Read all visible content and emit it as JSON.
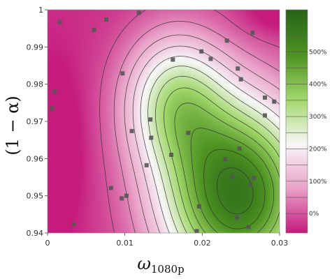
{
  "chart_data": {
    "type": "contour",
    "title": "",
    "xlabel_main": "ω",
    "xlabel_sub": "1080p",
    "ylabel": "(1 − α)",
    "x_range": [
      0,
      0.03
    ],
    "y_range": [
      0.94,
      1.0
    ],
    "x_ticks": [
      0,
      0.01,
      0.02,
      0.03
    ],
    "x_tick_labels": [
      "0",
      "0.01",
      "0.02",
      "0.03"
    ],
    "y_ticks": [
      0.94,
      0.95,
      0.96,
      0.97,
      0.98,
      0.99,
      1.0
    ],
    "y_tick_labels": [
      "0.94",
      "0.95",
      "0.96",
      "0.97",
      "0.98",
      "0.99",
      "1"
    ],
    "colorscale": "PiYG",
    "colorscale_stops": [
      "#c51b7d",
      "#e9a3c9",
      "#f7f7f7",
      "#a1d76a",
      "#4d9221",
      "#276419"
    ],
    "colorbar_range": [
      -60,
      630
    ],
    "colorbar_ticks": [
      0,
      100,
      200,
      300,
      400,
      500
    ],
    "colorbar_tick_labels": [
      "0%",
      "100%",
      "200%",
      "300%",
      "400%",
      "500%"
    ],
    "contour_levels": [
      0,
      50,
      100,
      150,
      200,
      250,
      300,
      350,
      400,
      450,
      500,
      550
    ],
    "contour_line_color": "#333333",
    "marker_color": "#555555",
    "points": [
      {
        "x": 0.0016,
        "y": 0.9967
      },
      {
        "x": 0.006,
        "y": 0.9946
      },
      {
        "x": 0.0076,
        "y": 0.9974
      },
      {
        "x": 0.0118,
        "y": 0.9992
      },
      {
        "x": 0.0265,
        "y": 0.9938
      },
      {
        "x": 0.0232,
        "y": 0.9917
      },
      {
        "x": 0.0199,
        "y": 0.9888
      },
      {
        "x": 0.0211,
        "y": 0.9868
      },
      {
        "x": 0.0162,
        "y": 0.9866
      },
      {
        "x": 0.0246,
        "y": 0.9842
      },
      {
        "x": 0.025,
        "y": 0.9813
      },
      {
        "x": 0.0097,
        "y": 0.9829
      },
      {
        "x": 0.0009,
        "y": 0.978
      },
      {
        "x": 0.0281,
        "y": 0.9764
      },
      {
        "x": 0.0293,
        "y": 0.9753
      },
      {
        "x": 0.0006,
        "y": 0.9735
      },
      {
        "x": 0.0281,
        "y": 0.9716
      },
      {
        "x": 0.0133,
        "y": 0.9705
      },
      {
        "x": 0.0109,
        "y": 0.9674
      },
      {
        "x": 0.0182,
        "y": 0.9669
      },
      {
        "x": 0.0134,
        "y": 0.9656
      },
      {
        "x": 0.0248,
        "y": 0.9627
      },
      {
        "x": 0.016,
        "y": 0.961
      },
      {
        "x": 0.023,
        "y": 0.9598
      },
      {
        "x": 0.0128,
        "y": 0.9582
      },
      {
        "x": 0.0239,
        "y": 0.9551
      },
      {
        "x": 0.0267,
        "y": 0.9548
      },
      {
        "x": 0.0262,
        "y": 0.953
      },
      {
        "x": 0.0082,
        "y": 0.9521
      },
      {
        "x": 0.0102,
        "y": 0.95
      },
      {
        "x": 0.0096,
        "y": 0.9493
      },
      {
        "x": 0.0196,
        "y": 0.9471
      },
      {
        "x": 0.0245,
        "y": 0.9441
      },
      {
        "x": 0.0034,
        "y": 0.9423
      },
      {
        "x": 0.026,
        "y": 0.9416
      },
      {
        "x": 0.0193,
        "y": 0.9405
      }
    ]
  }
}
